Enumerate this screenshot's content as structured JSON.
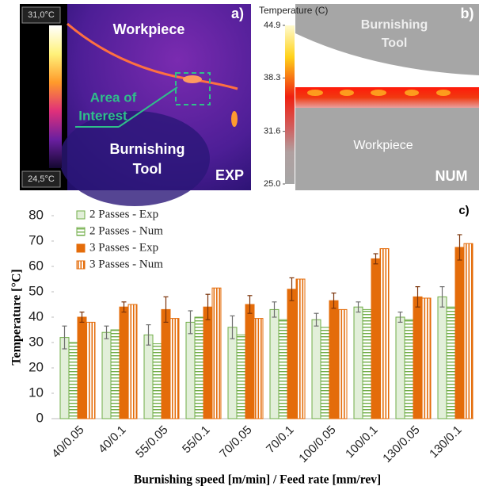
{
  "panel_a": {
    "label": "a)",
    "scale_max": "31,0°C",
    "scale_min": "24,5°C",
    "workpiece": "Workpiece",
    "area_line1": "Area of",
    "area_line2": "Interest",
    "tool_line1": "Burnishing",
    "tool_line2": "Tool",
    "tag": "EXP"
  },
  "panel_b": {
    "label": "b)",
    "colorbar_title": "Temperature (C)",
    "range": [
      25.0,
      44.9
    ],
    "ticks": [
      44.9,
      38.3,
      31.6,
      {
        "value": 25,
        "label": "25.0"
      }
    ],
    "tool_line1": "Burnishing",
    "tool_line2": "Tool",
    "workpiece": "Workpiece",
    "tag": "NUM"
  },
  "chart_data": {
    "type": "bar",
    "panel_label": "c)",
    "xlabel": "Burnishing speed [m/min] / Feed rate [mm/rev]",
    "ylabel": "Temperature [°C]",
    "categories": [
      "40/0.05",
      "40/0.1",
      "55/0.05",
      "55/0.1",
      "70/0.05",
      "70/0.1",
      "100/0.05",
      "100/0.1",
      "130/0.05",
      "130/0.1"
    ],
    "ylim": [
      0,
      80
    ],
    "yticks": [
      0,
      10,
      20,
      30,
      40,
      50,
      60,
      70,
      80
    ],
    "series": [
      {
        "name": "2 Passes - Exp",
        "color": "#70ad47",
        "fill": "solid",
        "values": [
          32,
          34,
          33,
          38,
          36,
          43,
          39,
          44,
          40,
          48
        ],
        "errors": [
          4.5,
          2.5,
          4,
          4.5,
          4.5,
          3,
          2.5,
          2,
          2,
          4
        ]
      },
      {
        "name": "2 Passes - Num",
        "color": "#70ad47",
        "fill": "horizontal-stripes",
        "values": [
          30,
          35,
          29.5,
          40,
          33,
          39,
          36,
          43,
          39,
          44
        ]
      },
      {
        "name": "3 Passes - Exp",
        "color": "#e46c0a",
        "fill": "solid",
        "values": [
          40,
          44,
          43,
          44,
          45,
          51,
          46.5,
          63,
          48,
          67.5
        ],
        "errors": [
          2,
          2,
          5,
          5,
          3.5,
          4.5,
          3,
          2,
          4,
          5
        ]
      },
      {
        "name": "3 Passes - Num",
        "color": "#e46c0a",
        "fill": "vertical-stripes",
        "values": [
          38,
          45,
          39.5,
          51.5,
          39.5,
          55,
          43,
          67,
          47.5,
          69
        ]
      }
    ]
  }
}
